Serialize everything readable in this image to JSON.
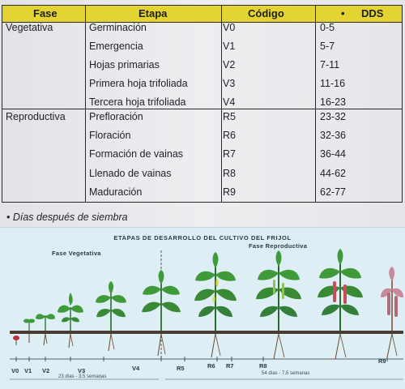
{
  "table": {
    "headers": {
      "fase": "Fase",
      "etapa": "Etapa",
      "codigo": "Código",
      "dds": "DDS",
      "dds_bullet": "•"
    },
    "phases": {
      "vegetativa": "Vegetativa",
      "reproductiva": "Reproductiva"
    },
    "rows": [
      {
        "etapa": "Germinación",
        "codigo": "V0",
        "dds": "0-5"
      },
      {
        "etapa": "Emergencia",
        "codigo": "V1",
        "dds": "5-7"
      },
      {
        "etapa": "Hojas primarias",
        "codigo": "V2",
        "dds": "7-11"
      },
      {
        "etapa": "Primera hoja trifoliada",
        "codigo": "V3",
        "dds": "11-16"
      },
      {
        "etapa": "Tercera hoja trifoliada",
        "codigo": "V4",
        "dds": "16-23"
      },
      {
        "etapa": "Prefloración",
        "codigo": "R5",
        "dds": "23-32"
      },
      {
        "etapa": "Floración",
        "codigo": "R6",
        "dds": "32-36"
      },
      {
        "etapa": "Formación de vainas",
        "codigo": "R7",
        "dds": "36-44"
      },
      {
        "etapa": "Llenado de vainas",
        "codigo": "R8",
        "dds": "44-62"
      },
      {
        "etapa": "Maduración",
        "codigo": "R9",
        "dds": "62-77"
      }
    ]
  },
  "footnote": "• Días después de siembra",
  "diagram": {
    "title": "ETAPAS DE DESARROLLO DEL CULTIVO DEL FRIJOL",
    "phase_vegetativa": "Fase Vegetativa",
    "phase_reproductiva": "Fase Reproductiva",
    "stages": [
      "V0",
      "V1",
      "V2",
      "V3",
      "V4",
      "R5",
      "R6",
      "R7",
      "R8",
      "R9"
    ],
    "veg_duration": "23 días - 3.5 semanas",
    "rep_duration": "54 días - 7.5 semanas",
    "colors": {
      "leaf": "#3f9a3a",
      "leaf_dark": "#2a6d2a",
      "soil": "#4a3c30",
      "pod": "#c94a5a",
      "mature": "#c88a9a"
    }
  }
}
